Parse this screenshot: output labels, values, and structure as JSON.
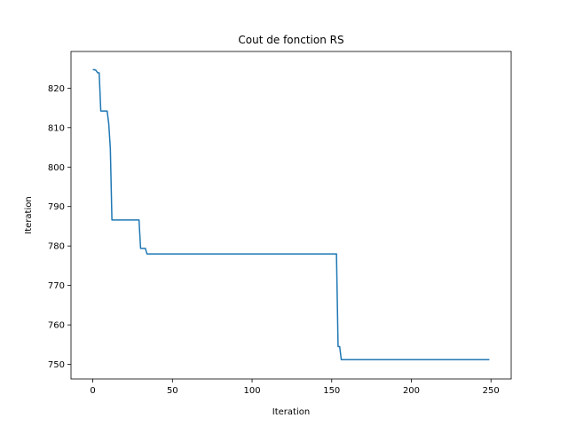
{
  "chart_data": {
    "type": "line",
    "title": "Cout de fonction RS",
    "xlabel": "Iteration",
    "ylabel": "Iteration",
    "xlim": [
      -13.7,
      262.7
    ],
    "ylim": [
      746.3,
      829.3
    ],
    "xticks": [
      0,
      50,
      100,
      150,
      200,
      250
    ],
    "yticks": [
      750,
      760,
      770,
      780,
      790,
      800,
      810,
      820
    ],
    "grid": false,
    "line_color": "#1f77b4",
    "series": [
      {
        "x": [
          0,
          1,
          2,
          3,
          4,
          5,
          6,
          7,
          8,
          9,
          10,
          11,
          12,
          13,
          20,
          25,
          29,
          30,
          31,
          32,
          33,
          34,
          35,
          50,
          100,
          150,
          153,
          154,
          155,
          156,
          157,
          200,
          249
        ],
        "y": [
          824.7,
          824.7,
          824.5,
          823.9,
          823.9,
          814.2,
          814.2,
          814.2,
          814.2,
          814.2,
          811.0,
          804.7,
          786.6,
          786.6,
          786.6,
          786.6,
          786.6,
          779.4,
          779.4,
          779.4,
          779.4,
          778.0,
          778.0,
          778.0,
          778.0,
          778.0,
          778.0,
          754.5,
          754.5,
          751.2,
          751.2,
          751.2,
          751.2
        ]
      }
    ]
  }
}
